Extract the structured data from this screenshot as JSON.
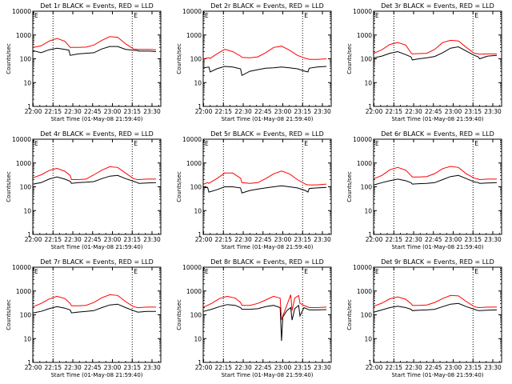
{
  "chart_data": {
    "type": "line",
    "layout": "3x3 grid",
    "scale": "log",
    "ylim": [
      1,
      10000
    ],
    "ylabel": "Counts/sec",
    "xlabel": "Start Time (01-May-08 21:59:40)",
    "x_ticks": [
      "22:00",
      "22:15",
      "22:30",
      "22:45",
      "23:00",
      "23:15",
      "23:30"
    ],
    "y_ticks": [
      "1",
      "10",
      "100",
      "1000",
      "10000"
    ],
    "vertical_markers": [
      "22:15",
      "23:15"
    ],
    "corner_markers": [
      "E",
      "E"
    ],
    "colors": {
      "events": "#000000",
      "lld": "#ff0000"
    },
    "panels": [
      {
        "title": "Det 1r BLACK = Events, RED = LLD",
        "series": [
          {
            "name": "Events",
            "color": "#000000",
            "x": [
              "22:00",
              "22:06",
              "22:12",
              "22:18",
              "22:24",
              "22:27",
              "22:28",
              "22:34",
              "22:40",
              "22:46",
              "22:52",
              "22:58",
              "23:04",
              "23:10",
              "23:16",
              "23:19",
              "23:20",
              "23:24",
              "23:28",
              "23:33"
            ],
            "y": [
              220,
              180,
              240,
              280,
              250,
              230,
              140,
              160,
              170,
              180,
              260,
              330,
              330,
              250,
              230,
              220,
              210,
              210,
              210,
              200
            ]
          },
          {
            "name": "LLD",
            "color": "#ff0000",
            "x": [
              "22:00",
              "22:06",
              "22:12",
              "22:18",
              "22:24",
              "22:27",
              "22:28",
              "22:34",
              "22:40",
              "22:46",
              "22:52",
              "22:58",
              "23:04",
              "23:10",
              "23:16",
              "23:19",
              "23:20",
              "23:24",
              "23:28",
              "23:33"
            ],
            "y": [
              300,
              350,
              550,
              720,
              550,
              350,
              300,
              300,
              310,
              380,
              600,
              850,
              800,
              430,
              260,
              250,
              250,
              250,
              250,
              240
            ]
          }
        ]
      },
      {
        "title": "Det 2r BLACK = Events, RED = LLD",
        "series": [
          {
            "name": "Events",
            "color": "#000000",
            "x": [
              "22:00",
              "22:04",
              "22:05",
              "22:10",
              "22:16",
              "22:22",
              "22:28",
              "22:29",
              "22:35",
              "22:41",
              "22:47",
              "22:53",
              "22:59",
              "23:05",
              "23:11",
              "23:17",
              "23:19",
              "23:20",
              "23:26",
              "23:33"
            ],
            "y": [
              42,
              45,
              28,
              38,
              48,
              45,
              38,
              20,
              30,
              35,
              40,
              42,
              45,
              42,
              38,
              30,
              28,
              40,
              45,
              48
            ]
          },
          {
            "name": "LLD",
            "color": "#ff0000",
            "x": [
              "22:00",
              "22:04",
              "22:05",
              "22:10",
              "22:16",
              "22:22",
              "22:28",
              "22:29",
              "22:35",
              "22:41",
              "22:47",
              "22:53",
              "22:59",
              "23:05",
              "23:11",
              "23:17",
              "23:19",
              "23:20",
              "23:26",
              "23:33"
            ],
            "y": [
              100,
              110,
              105,
              160,
              250,
              200,
              130,
              115,
              110,
              120,
              180,
              300,
              340,
              230,
              140,
              105,
              100,
              95,
              95,
              100
            ]
          }
        ]
      },
      {
        "title": "Det 3r BLACK = Events, RED = LLD",
        "series": [
          {
            "name": "Events",
            "color": "#000000",
            "x": [
              "22:00",
              "22:06",
              "22:12",
              "22:18",
              "22:24",
              "22:28",
              "22:29",
              "22:34",
              "22:40",
              "22:46",
              "22:52",
              "22:58",
              "23:04",
              "23:10",
              "23:16",
              "23:19",
              "23:20",
              "23:26",
              "23:33"
            ],
            "y": [
              110,
              130,
              170,
              200,
              150,
              120,
              90,
              100,
              110,
              125,
              180,
              280,
              320,
              210,
              140,
              120,
              100,
              130,
              140
            ]
          },
          {
            "name": "LLD",
            "color": "#ff0000",
            "x": [
              "22:00",
              "22:06",
              "22:12",
              "22:18",
              "22:24",
              "22:28",
              "22:29",
              "22:34",
              "22:40",
              "22:46",
              "22:52",
              "22:58",
              "23:04",
              "23:10",
              "23:16",
              "23:19",
              "23:20",
              "23:26",
              "23:33"
            ],
            "y": [
              170,
              240,
              400,
              480,
              380,
              180,
              160,
              165,
              170,
              250,
              480,
              600,
              560,
              300,
              170,
              160,
              155,
              160,
              160
            ]
          }
        ]
      },
      {
        "title": "Det 4r BLACK = Events, RED = LLD",
        "series": [
          {
            "name": "Events",
            "color": "#000000",
            "x": [
              "22:00",
              "22:06",
              "22:12",
              "22:18",
              "22:24",
              "22:28",
              "22:29",
              "22:34",
              "22:40",
              "22:46",
              "22:52",
              "22:58",
              "23:04",
              "23:10",
              "23:16",
              "23:19",
              "23:20",
              "23:26",
              "23:33"
            ],
            "y": [
              130,
              150,
              210,
              260,
              210,
              170,
              140,
              150,
              155,
              165,
              220,
              280,
              300,
              220,
              170,
              150,
              140,
              145,
              150
            ]
          },
          {
            "name": "LLD",
            "color": "#ff0000",
            "x": [
              "22:00",
              "22:06",
              "22:12",
              "22:18",
              "22:24",
              "22:28",
              "22:29",
              "22:34",
              "22:40",
              "22:46",
              "22:52",
              "22:58",
              "23:04",
              "23:10",
              "23:16",
              "23:19",
              "23:20",
              "23:26",
              "23:33"
            ],
            "y": [
              240,
              320,
              480,
              600,
              450,
              300,
              200,
              200,
              210,
              320,
              500,
              700,
              650,
              380,
              220,
              200,
              200,
              210,
              210
            ]
          }
        ]
      },
      {
        "title": "Det 5r BLACK = Events, RED = LLD",
        "series": [
          {
            "name": "Events",
            "color": "#000000",
            "x": [
              "22:00",
              "22:03",
              "22:04",
              "22:10",
              "22:16",
              "22:22",
              "22:28",
              "22:29",
              "22:35",
              "22:41",
              "22:47",
              "22:53",
              "22:59",
              "23:05",
              "23:11",
              "23:17",
              "23:19",
              "23:20",
              "23:26",
              "23:33"
            ],
            "y": [
              90,
              95,
              60,
              75,
              100,
              100,
              90,
              55,
              70,
              80,
              90,
              100,
              110,
              100,
              90,
              70,
              60,
              85,
              90,
              95
            ]
          },
          {
            "name": "LLD",
            "color": "#ff0000",
            "x": [
              "22:00",
              "22:03",
              "22:04",
              "22:10",
              "22:16",
              "22:22",
              "22:28",
              "22:29",
              "22:35",
              "22:41",
              "22:47",
              "22:53",
              "22:59",
              "23:05",
              "23:11",
              "23:17",
              "23:19",
              "23:20",
              "23:26",
              "23:33"
            ],
            "y": [
              130,
              150,
              140,
              220,
              380,
              380,
              230,
              150,
              140,
              150,
              220,
              350,
              460,
              350,
              200,
              130,
              120,
              120,
              120,
              130
            ]
          }
        ]
      },
      {
        "title": "Det 6r BLACK = Events, RED = LLD",
        "series": [
          {
            "name": "Events",
            "color": "#000000",
            "x": [
              "22:00",
              "22:06",
              "22:12",
              "22:18",
              "22:24",
              "22:28",
              "22:29",
              "22:34",
              "22:40",
              "22:46",
              "22:52",
              "22:58",
              "23:04",
              "23:10",
              "23:16",
              "23:19",
              "23:20",
              "23:26",
              "23:33"
            ],
            "y": [
              120,
              150,
              180,
              210,
              180,
              150,
              130,
              135,
              140,
              150,
              200,
              270,
              300,
              220,
              160,
              150,
              140,
              145,
              150
            ]
          },
          {
            "name": "LLD",
            "color": "#ff0000",
            "x": [
              "22:00",
              "22:06",
              "22:12",
              "22:18",
              "22:24",
              "22:28",
              "22:29",
              "22:34",
              "22:40",
              "22:46",
              "22:52",
              "22:58",
              "23:04",
              "23:10",
              "23:16",
              "23:19",
              "23:20",
              "23:26",
              "23:33"
            ],
            "y": [
              220,
              300,
              520,
              650,
              500,
              300,
              260,
              260,
              270,
              360,
              580,
              720,
              650,
              350,
              230,
              210,
              200,
              210,
              210
            ]
          }
        ]
      },
      {
        "title": "Det 7r BLACK = Events, RED = LLD",
        "series": [
          {
            "name": "Events",
            "color": "#000000",
            "x": [
              "22:00",
              "22:06",
              "22:12",
              "22:18",
              "22:24",
              "22:28",
              "22:29",
              "22:34",
              "22:40",
              "22:46",
              "22:52",
              "22:58",
              "23:04",
              "23:10",
              "23:16",
              "23:19",
              "23:20",
              "23:26",
              "23:33"
            ],
            "y": [
              120,
              140,
              180,
              220,
              190,
              160,
              120,
              130,
              140,
              150,
              200,
              260,
              280,
              200,
              150,
              130,
              130,
              140,
              140
            ]
          },
          {
            "name": "LLD",
            "color": "#ff0000",
            "x": [
              "22:00",
              "22:06",
              "22:12",
              "22:18",
              "22:24",
              "22:28",
              "22:29",
              "22:34",
              "22:40",
              "22:46",
              "22:52",
              "22:58",
              "23:04",
              "23:10",
              "23:16",
              "23:19",
              "23:20",
              "23:26",
              "23:33"
            ],
            "y": [
              220,
              300,
              460,
              600,
              480,
              300,
              240,
              240,
              250,
              330,
              520,
              700,
              650,
              360,
              220,
              200,
              200,
              210,
              210
            ]
          }
        ]
      },
      {
        "title": "Det 8r BLACK = Events, RED = LLD",
        "series": [
          {
            "name": "Events",
            "color": "#000000",
            "x": [
              "22:00",
              "22:06",
              "22:12",
              "22:18",
              "22:24",
              "22:28",
              "22:29",
              "22:35",
              "22:41",
              "22:47",
              "22:53",
              "22:58",
              "22:59",
              "23:00",
              "23:03",
              "23:06",
              "23:07",
              "23:09",
              "23:12",
              "23:13",
              "23:16",
              "23:20",
              "23:26",
              "23:33"
            ],
            "y": [
              140,
              170,
              220,
              270,
              250,
              200,
              170,
              170,
              180,
              220,
              250,
              200,
              8,
              80,
              150,
              200,
              60,
              180,
              250,
              90,
              200,
              160,
              160,
              165
            ]
          },
          {
            "name": "LLD",
            "color": "#ff0000",
            "x": [
              "22:00",
              "22:06",
              "22:12",
              "22:18",
              "22:24",
              "22:28",
              "22:29",
              "22:35",
              "22:41",
              "22:47",
              "22:53",
              "22:58",
              "22:59",
              "23:00",
              "23:03",
              "23:06",
              "23:07",
              "23:09",
              "23:12",
              "23:13",
              "23:16",
              "23:20",
              "23:26",
              "23:33"
            ],
            "y": [
              210,
              300,
              480,
              600,
              500,
              330,
              250,
              250,
              300,
              420,
              600,
              500,
              60,
              90,
              250,
              700,
              150,
              500,
              650,
              300,
              250,
              200,
              200,
              210
            ]
          }
        ]
      },
      {
        "title": "Det 9r BLACK = Events, RED = LLD",
        "series": [
          {
            "name": "Events",
            "color": "#000000",
            "x": [
              "22:00",
              "22:06",
              "22:12",
              "22:18",
              "22:24",
              "22:28",
              "22:29",
              "22:34",
              "22:40",
              "22:46",
              "22:52",
              "22:58",
              "23:04",
              "23:10",
              "23:16",
              "23:19",
              "23:20",
              "23:26",
              "23:33"
            ],
            "y": [
              130,
              160,
              200,
              230,
              200,
              170,
              150,
              155,
              160,
              170,
              220,
              280,
              300,
              220,
              170,
              150,
              150,
              155,
              160
            ]
          },
          {
            "name": "LLD",
            "color": "#ff0000",
            "x": [
              "22:00",
              "22:06",
              "22:12",
              "22:18",
              "22:24",
              "22:28",
              "22:29",
              "22:34",
              "22:40",
              "22:46",
              "22:52",
              "22:58",
              "23:04",
              "23:10",
              "23:16",
              "23:19",
              "23:20",
              "23:26",
              "23:33"
            ],
            "y": [
              230,
              310,
              470,
              560,
              450,
              300,
              250,
              250,
              260,
              330,
              480,
              650,
              620,
              360,
              220,
              200,
              200,
              210,
              210
            ]
          }
        ]
      }
    ]
  }
}
